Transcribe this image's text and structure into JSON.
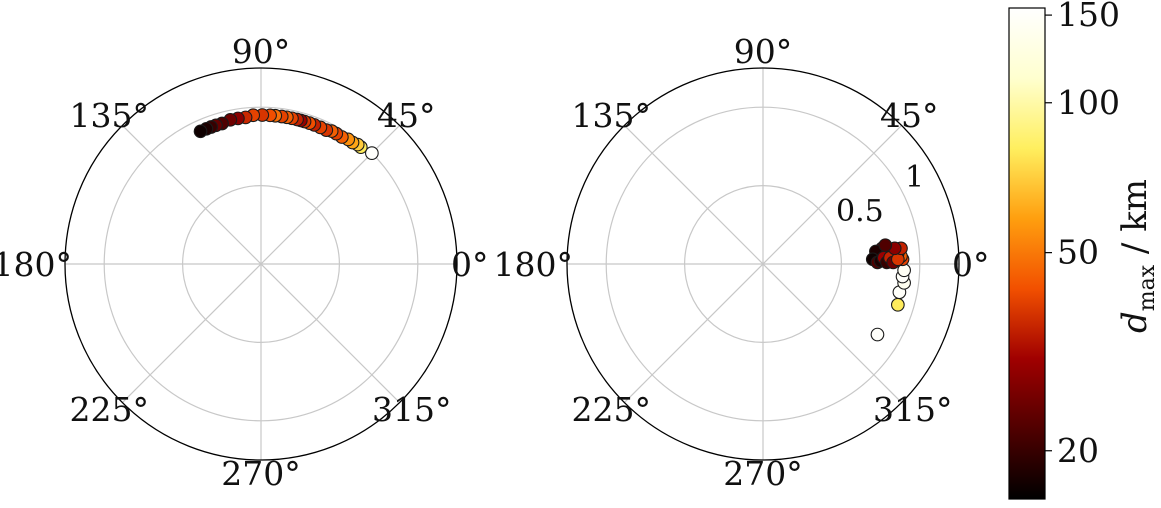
{
  "colorbar": {
    "label_symbol": "d",
    "label_sub": "max",
    "label_unit": " / km",
    "ticks": [
      {
        "value": 20,
        "label": "20"
      },
      {
        "value": 50,
        "label": "50"
      },
      {
        "value": 100,
        "label": "100"
      },
      {
        "value": 150,
        "label": "150"
      }
    ],
    "range": [
      16,
      155
    ],
    "scale": "log",
    "colormap": "afmhot",
    "stops": [
      "#000000",
      "#500000",
      "#a00000",
      "#f25000",
      "#ff9f0f",
      "#ffef5f",
      "#ffffcf",
      "#ffffff"
    ]
  },
  "chart_data": [
    {
      "type": "scatter",
      "projection": "polar",
      "angle_labels": [
        "0°",
        "45°",
        "90°",
        "135°",
        "180°",
        "225°",
        "270°",
        "315°"
      ],
      "radial_ticks": [],
      "rmax": 1.25,
      "grid": true,
      "points": [
        {
          "theta": 45.0,
          "r": 1.0,
          "d": 152
        },
        {
          "theta": 49.5,
          "r": 0.98,
          "d": 80
        },
        {
          "theta": 51.0,
          "r": 0.98,
          "d": 70
        },
        {
          "theta": 53.0,
          "r": 0.97,
          "d": 60
        },
        {
          "theta": 55.0,
          "r": 0.97,
          "d": 55
        },
        {
          "theta": 57.5,
          "r": 0.96,
          "d": 45
        },
        {
          "theta": 60.0,
          "r": 0.96,
          "d": 40
        },
        {
          "theta": 62.0,
          "r": 0.96,
          "d": 45
        },
        {
          "theta": 64.0,
          "r": 0.95,
          "d": 38
        },
        {
          "theta": 66.5,
          "r": 0.95,
          "d": 40
        },
        {
          "theta": 69.0,
          "r": 0.95,
          "d": 35
        },
        {
          "theta": 71.0,
          "r": 0.95,
          "d": 42
        },
        {
          "theta": 73.0,
          "r": 0.95,
          "d": 38
        },
        {
          "theta": 74.5,
          "r": 0.95,
          "d": 30
        },
        {
          "theta": 76.0,
          "r": 0.95,
          "d": 35
        },
        {
          "theta": 78.0,
          "r": 0.95,
          "d": 40
        },
        {
          "theta": 80.0,
          "r": 0.95,
          "d": 45
        },
        {
          "theta": 82.0,
          "r": 0.95,
          "d": 40
        },
        {
          "theta": 84.5,
          "r": 0.95,
          "d": 48
        },
        {
          "theta": 86.5,
          "r": 0.95,
          "d": 42
        },
        {
          "theta": 89.5,
          "r": 0.95,
          "d": 38
        },
        {
          "theta": 93.0,
          "r": 0.95,
          "d": 40
        },
        {
          "theta": 96.0,
          "r": 0.94,
          "d": 36
        },
        {
          "theta": 99.0,
          "r": 0.94,
          "d": 28
        },
        {
          "theta": 102.0,
          "r": 0.94,
          "d": 25
        },
        {
          "theta": 105.5,
          "r": 0.93,
          "d": 22
        },
        {
          "theta": 108.0,
          "r": 0.93,
          "d": 24
        },
        {
          "theta": 110.0,
          "r": 0.93,
          "d": 20
        },
        {
          "theta": 112.0,
          "r": 0.93,
          "d": 18
        },
        {
          "theta": 114.5,
          "r": 0.93,
          "d": 17
        }
      ]
    },
    {
      "type": "scatter",
      "projection": "polar",
      "angle_labels": [
        "0°",
        "45°",
        "90°",
        "135°",
        "180°",
        "225°",
        "270°",
        "315°"
      ],
      "radial_ticks": [
        {
          "r": 0.5,
          "label": "0.5"
        },
        {
          "r": 1.0,
          "label": "1"
        }
      ],
      "rmax": 1.25,
      "grid": true,
      "points": [
        {
          "x": 0.73,
          "y": -0.45,
          "d": 150
        },
        {
          "x": 0.86,
          "y": -0.26,
          "d": 80
        },
        {
          "x": 0.87,
          "y": -0.18,
          "d": 150
        },
        {
          "x": 0.9,
          "y": -0.12,
          "d": 140
        },
        {
          "x": 0.89,
          "y": -0.08,
          "d": 150
        },
        {
          "x": 0.9,
          "y": -0.04,
          "d": 145
        },
        {
          "x": 0.89,
          "y": 0.03,
          "d": 40
        },
        {
          "x": 0.88,
          "y": 0.05,
          "d": 45
        },
        {
          "x": 0.86,
          "y": 0.07,
          "d": 42
        },
        {
          "x": 0.84,
          "y": 0.06,
          "d": 30
        },
        {
          "x": 0.8,
          "y": 0.08,
          "d": 20
        },
        {
          "x": 0.76,
          "y": 0.1,
          "d": 25
        },
        {
          "x": 0.72,
          "y": 0.08,
          "d": 18
        },
        {
          "x": 0.7,
          "y": 0.03,
          "d": 17
        },
        {
          "x": 0.73,
          "y": 0.01,
          "d": 22
        },
        {
          "x": 0.75,
          "y": 0.02,
          "d": 18
        },
        {
          "x": 0.77,
          "y": 0.04,
          "d": 30
        },
        {
          "x": 0.79,
          "y": 0.01,
          "d": 20
        },
        {
          "x": 0.81,
          "y": 0.04,
          "d": 35
        },
        {
          "x": 0.83,
          "y": 0.01,
          "d": 25
        },
        {
          "x": 0.86,
          "y": 0.03,
          "d": 38
        },
        {
          "x": 0.88,
          "y": 0.1,
          "d": 35
        },
        {
          "x": 0.84,
          "y": 0.1,
          "d": 28
        },
        {
          "x": 0.78,
          "y": 0.12,
          "d": 22
        }
      ]
    }
  ]
}
